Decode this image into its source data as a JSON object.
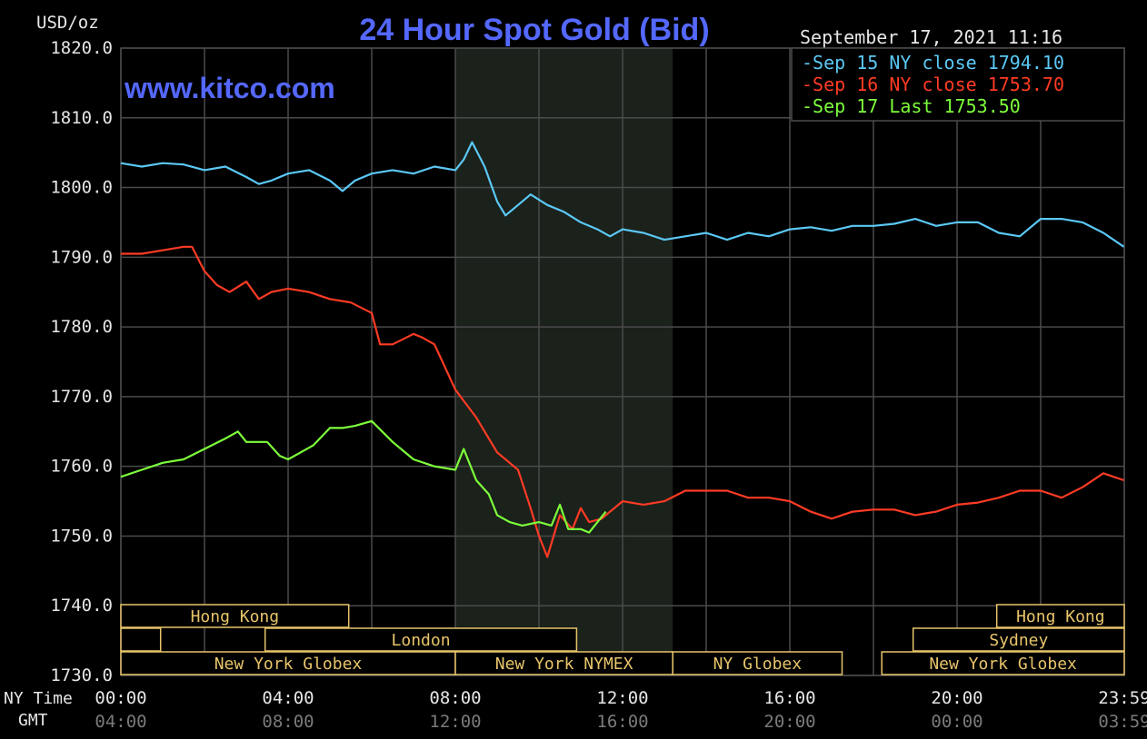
{
  "chart_data": {
    "type": "line",
    "title": "24 Hour Spot Gold (Bid)",
    "watermark": "www.kitco.com",
    "date_stamp": "September 17, 2021 11:16",
    "ylabel": "USD/oz",
    "ylim": [
      1730,
      1820
    ],
    "yticks": [
      "1820.0",
      "1810.0",
      "1800.0",
      "1790.0",
      "1780.0",
      "1770.0",
      "1760.0",
      "1750.0",
      "1740.0",
      "1730.0"
    ],
    "xlim": [
      0,
      24
    ],
    "x_row_label_ny": "NY Time",
    "x_row_label_gmt": "GMT",
    "x_ticks": [
      {
        "x": 0,
        "ny": "00:00",
        "gmt": "04:00"
      },
      {
        "x": 4,
        "ny": "04:00",
        "gmt": "08:00"
      },
      {
        "x": 8,
        "ny": "08:00",
        "gmt": "12:00"
      },
      {
        "x": 12,
        "ny": "12:00",
        "gmt": "16:00"
      },
      {
        "x": 16,
        "ny": "16:00",
        "gmt": "20:00"
      },
      {
        "x": 20,
        "ny": "20:00",
        "gmt": "00:00"
      },
      {
        "x": 24,
        "ny": "23:59",
        "gmt": "03:59"
      }
    ],
    "highlight_range": [
      8.0,
      13.2
    ],
    "grid": true,
    "legend_position": "top-right",
    "series": [
      {
        "name": "Sep 15 NY close 1794.10",
        "color": "#5bc8f5",
        "x": [
          0,
          0.5,
          1,
          1.5,
          2,
          2.5,
          3,
          3.3,
          3.6,
          4,
          4.5,
          5,
          5.3,
          5.6,
          6,
          6.5,
          7,
          7.5,
          8,
          8.2,
          8.4,
          8.7,
          9,
          9.2,
          9.5,
          9.8,
          10.2,
          10.6,
          11,
          11.4,
          11.7,
          12,
          12.5,
          13,
          13.5,
          14,
          14.5,
          15,
          15.5,
          16,
          16.5,
          17,
          17.5,
          18,
          18.5,
          19,
          19.5,
          20,
          20.5,
          21,
          21.5,
          22,
          22.5,
          23,
          23.5,
          23.99
        ],
        "y": [
          1803.5,
          1803.0,
          1803.5,
          1803.3,
          1802.5,
          1803.0,
          1801.5,
          1800.5,
          1801.0,
          1802.0,
          1802.5,
          1801.0,
          1799.5,
          1801.0,
          1802.0,
          1802.5,
          1802.0,
          1803.0,
          1802.5,
          1804.0,
          1806.5,
          1803.0,
          1798.0,
          1796.0,
          1797.5,
          1799.0,
          1797.5,
          1796.5,
          1795.0,
          1794.0,
          1793.0,
          1794.0,
          1793.5,
          1792.5,
          1793.0,
          1793.5,
          1792.5,
          1793.5,
          1793.0,
          1794.0,
          1794.3,
          1793.8,
          1794.5,
          1794.5,
          1794.8,
          1795.5,
          1794.5,
          1795.0,
          1795.0,
          1793.5,
          1793.0,
          1795.5,
          1795.5,
          1795.0,
          1793.5,
          1791.5
        ]
      },
      {
        "name": "Sep 16 NY close 1753.70",
        "color": "#ff3b24",
        "x": [
          0,
          0.5,
          1,
          1.5,
          1.7,
          2,
          2.3,
          2.6,
          3,
          3.3,
          3.6,
          4,
          4.5,
          5,
          5.5,
          6,
          6.2,
          6.5,
          7,
          7.2,
          7.5,
          8,
          8.5,
          9,
          9.5,
          9.8,
          10,
          10.2,
          10.5,
          10.8,
          11,
          11.2,
          11.5,
          12,
          12.5,
          13,
          13.5,
          14,
          14.5,
          15,
          15.5,
          16,
          16.5,
          17,
          17.5,
          18,
          18.5,
          19,
          19.5,
          20,
          20.5,
          21,
          21.5,
          22,
          22.5,
          23,
          23.5,
          23.99
        ],
        "y": [
          1790.5,
          1790.5,
          1791.0,
          1791.5,
          1791.5,
          1788.0,
          1786.0,
          1785.0,
          1786.5,
          1784.0,
          1785.0,
          1785.5,
          1785.0,
          1784.0,
          1783.5,
          1782.0,
          1777.5,
          1777.5,
          1779.0,
          1778.5,
          1777.5,
          1771.0,
          1767.0,
          1762.0,
          1759.5,
          1754.0,
          1750.0,
          1747.0,
          1753.0,
          1751.0,
          1754.0,
          1752.0,
          1752.5,
          1755.0,
          1754.5,
          1755.0,
          1756.5,
          1756.5,
          1756.5,
          1755.5,
          1755.5,
          1755.0,
          1753.5,
          1752.5,
          1753.5,
          1753.8,
          1753.8,
          1753.0,
          1753.5,
          1754.5,
          1754.8,
          1755.5,
          1756.5,
          1756.5,
          1755.5,
          1757.0,
          1759.0,
          1758.0
        ]
      },
      {
        "name": "Sep 17 Last 1753.50",
        "color": "#7dff3b",
        "x": [
          0,
          0.5,
          1,
          1.5,
          2,
          2.5,
          2.8,
          3,
          3.5,
          3.8,
          4,
          4.3,
          4.6,
          5,
          5.3,
          5.6,
          6,
          6.5,
          7,
          7.5,
          8,
          8.2,
          8.5,
          8.8,
          9,
          9.3,
          9.6,
          10,
          10.3,
          10.5,
          10.7,
          11,
          11.2,
          11.4,
          11.6
        ],
        "y": [
          1758.5,
          1759.5,
          1760.5,
          1761.0,
          1762.5,
          1764.0,
          1765.0,
          1763.5,
          1763.5,
          1761.5,
          1761.0,
          1762.0,
          1763.0,
          1765.5,
          1765.5,
          1765.8,
          1766.5,
          1763.5,
          1761.0,
          1760.0,
          1759.5,
          1762.5,
          1758.0,
          1756.0,
          1753.0,
          1752.0,
          1751.5,
          1752.0,
          1751.5,
          1754.5,
          1751.0,
          1751.0,
          1750.5,
          1752.0,
          1753.5
        ]
      }
    ],
    "market_sessions": [
      {
        "label": "Hong Kong",
        "row": 0,
        "x0": 0.0,
        "x1": 5.45
      },
      {
        "label": "",
        "row": 1,
        "x0": 0.0,
        "x1": 0.95
      },
      {
        "label": "London",
        "row": 1,
        "x0": 3.45,
        "x1": 10.9
      },
      {
        "label": "New York Globex",
        "row": 2,
        "x0": 0.0,
        "x1": 8.0
      },
      {
        "label": "New York NYMEX",
        "row": 2,
        "x0": 8.0,
        "x1": 13.2
      },
      {
        "label": "NY Globex",
        "row": 2,
        "x0": 13.2,
        "x1": 17.25
      },
      {
        "label": "New York Globex",
        "row": 2,
        "x0": 18.2,
        "x1": 24.0
      },
      {
        "label": "Sydney",
        "row": 1,
        "x0": 18.95,
        "x1": 24.0
      },
      {
        "label": "Hong Kong",
        "row": 0,
        "x0": 20.95,
        "x1": 24.0
      }
    ]
  },
  "colors": {
    "background": "#000000",
    "grid": "#4a4a4a",
    "highlight": "#1b211b",
    "title": "#5468ff",
    "watermark": "#5468ff",
    "axis_text": "#e6e6e6",
    "gmt_text": "#7a7a7a",
    "session": "#e8c56a"
  }
}
